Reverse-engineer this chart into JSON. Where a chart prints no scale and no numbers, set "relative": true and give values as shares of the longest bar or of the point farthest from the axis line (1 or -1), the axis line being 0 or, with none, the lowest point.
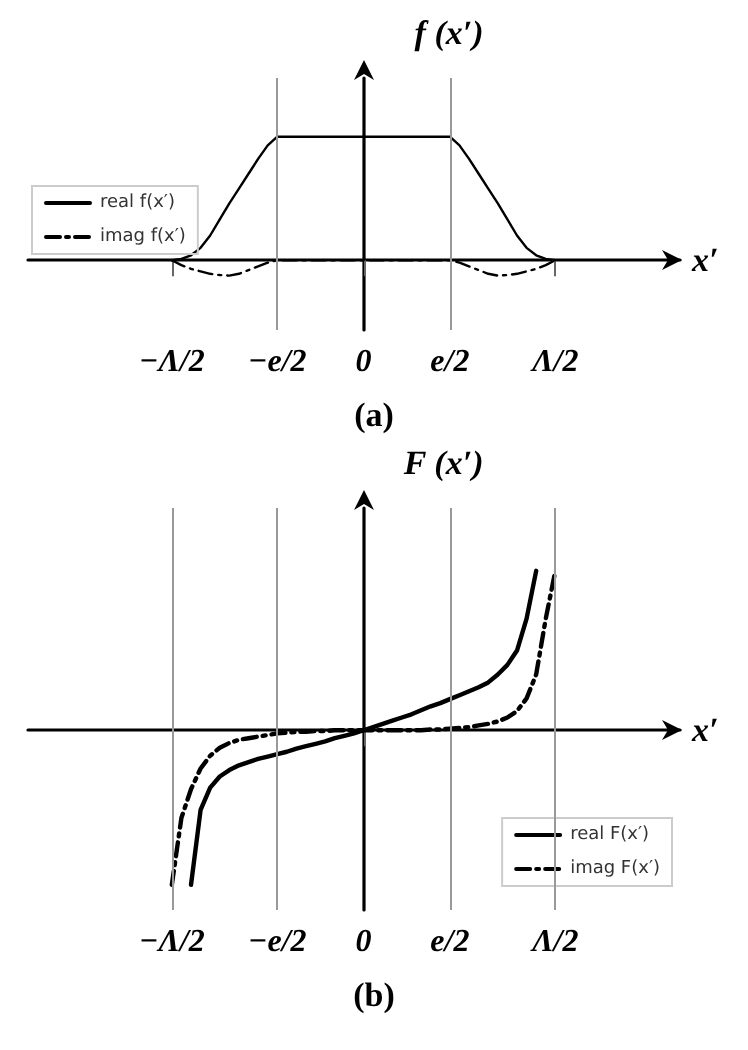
{
  "chart_data": [
    {
      "type": "line",
      "title": "(a)",
      "ylabel": "f (x′)",
      "xlabel": "x′",
      "relative": true,
      "categories": [
        null,
        null,
        null,
        null,
        null,
        null,
        null,
        null,
        null,
        null,
        null,
        null,
        null,
        null,
        null,
        "−Λ/2",
        null,
        null,
        null,
        null,
        null,
        null,
        null,
        null,
        null,
        null,
        "−e/2",
        null,
        null,
        null,
        null,
        null,
        null,
        null,
        null,
        "0",
        null,
        null,
        null,
        null,
        null,
        null,
        null,
        null,
        "e/2",
        null,
        null,
        null,
        null,
        null,
        null,
        null,
        null,
        null,
        null,
        "Λ/2",
        null,
        null,
        null,
        null,
        null,
        null,
        null,
        null,
        null,
        null,
        null,
        null,
        null
      ],
      "legend": "left",
      "grid": false,
      "marker": "none",
      "series": [
        {
          "name": "real f(x′)",
          "color": "#000000",
          "line_style": "solid",
          "values": [
            null,
            null,
            null,
            null,
            null,
            null,
            null,
            null,
            null,
            null,
            null,
            null,
            null,
            null,
            null,
            0,
            0.01,
            0.04,
            0.1,
            0.2,
            0.33,
            0.46,
            0.58,
            0.7,
            0.82,
            0.93,
            1,
            1,
            1,
            1,
            1,
            1,
            1,
            1,
            1,
            1,
            1,
            1,
            1,
            1,
            1,
            1,
            1,
            1,
            1,
            0.93,
            0.82,
            0.7,
            0.58,
            0.46,
            0.33,
            0.2,
            0.1,
            0.04,
            0.01,
            0,
            null,
            null,
            null,
            null,
            null,
            null,
            null,
            null,
            null,
            null,
            null,
            null,
            null
          ]
        },
        {
          "name": "imag f(x′)",
          "color": "#000000",
          "line_style": "dashed",
          "values": [
            null,
            null,
            null,
            null,
            null,
            null,
            null,
            null,
            null,
            null,
            null,
            null,
            null,
            null,
            null,
            0,
            -0.04,
            -0.07,
            -0.09,
            -0.11,
            -0.12,
            -0.125,
            -0.11,
            -0.08,
            -0.05,
            -0.02,
            0,
            0,
            0,
            0,
            0,
            0,
            0,
            0,
            0,
            0,
            0,
            0,
            0,
            0,
            0,
            0,
            0,
            0,
            0,
            -0.02,
            -0.05,
            -0.08,
            -0.11,
            -0.125,
            -0.12,
            -0.11,
            -0.09,
            -0.07,
            -0.04,
            0,
            null,
            null,
            null,
            null,
            null,
            null,
            null,
            null,
            null,
            null,
            null,
            null,
            null
          ]
        }
      ],
      "ref_lines": [
        {
          "axis": "x",
          "value": "−e/2",
          "color": "#999999"
        },
        {
          "axis": "x",
          "value": "e/2",
          "color": "#999999"
        }
      ]
    },
    {
      "type": "line",
      "title": "(b)",
      "ylabel": "F (x′)",
      "xlabel": "x′",
      "relative": true,
      "categories": [
        null,
        null,
        null,
        null,
        null,
        null,
        null,
        null,
        null,
        null,
        null,
        null,
        null,
        null,
        null,
        "−Λ/2",
        null,
        null,
        null,
        null,
        null,
        null,
        null,
        null,
        null,
        null,
        "−e/2",
        null,
        null,
        null,
        null,
        null,
        null,
        null,
        null,
        "0",
        null,
        null,
        null,
        null,
        null,
        null,
        null,
        null,
        "e/2",
        null,
        null,
        null,
        null,
        null,
        null,
        null,
        null,
        null,
        null,
        "Λ/2",
        null,
        null,
        null,
        null,
        null,
        null,
        null,
        null,
        null,
        null,
        null,
        null,
        null
      ],
      "legend": "bottom right",
      "grid": false,
      "marker": "none",
      "series": [
        {
          "name": "real F(x′)",
          "color": "#000000",
          "line_style": "solid",
          "values": [
            null,
            null,
            null,
            null,
            null,
            null,
            null,
            null,
            null,
            null,
            null,
            null,
            null,
            null,
            null,
            null,
            null,
            -0.97,
            -0.5,
            -0.36,
            -0.29,
            -0.25,
            -0.22,
            -0.2,
            -0.18,
            -0.165,
            -0.15,
            -0.135,
            -0.115,
            -0.1,
            -0.085,
            -0.07,
            -0.05,
            -0.035,
            -0.02,
            0,
            0.02,
            0.04,
            0.06,
            0.08,
            0.1,
            0.125,
            0.15,
            0.17,
            0.195,
            0.22,
            0.245,
            0.27,
            0.3,
            0.35,
            0.41,
            0.5,
            0.7,
            1.0,
            null,
            null,
            null,
            null,
            null,
            null,
            null,
            null,
            null,
            null,
            null,
            null,
            null,
            null,
            null
          ]
        },
        {
          "name": "imag F(x′)",
          "color": "#000000",
          "line_style": "dashed",
          "values": [
            null,
            null,
            null,
            null,
            null,
            null,
            null,
            null,
            null,
            null,
            null,
            null,
            null,
            null,
            null,
            -0.97,
            -0.55,
            -0.37,
            -0.24,
            -0.16,
            -0.11,
            -0.08,
            -0.06,
            -0.05,
            -0.04,
            -0.03,
            -0.02,
            -0.015,
            -0.01,
            -0.01,
            -0.005,
            -0.005,
            0,
            0,
            0,
            0,
            0,
            0,
            0,
            0,
            0,
            0,
            0.005,
            0.005,
            0.01,
            0.015,
            0.02,
            0.03,
            0.04,
            0.055,
            0.08,
            0.12,
            0.2,
            0.35,
            0.7,
            1.0,
            null,
            null,
            null,
            null,
            null,
            null,
            null,
            null,
            null,
            null,
            null,
            null,
            null
          ]
        }
      ],
      "ref_lines": [
        {
          "axis": "x",
          "value": "−Λ/2",
          "color": "#999999"
        },
        {
          "axis": "x",
          "value": "−e/2",
          "color": "#999999"
        },
        {
          "axis": "x",
          "value": "e/2",
          "color": "#999999"
        },
        {
          "axis": "x",
          "value": "Λ/2",
          "color": "#999999"
        }
      ]
    }
  ]
}
